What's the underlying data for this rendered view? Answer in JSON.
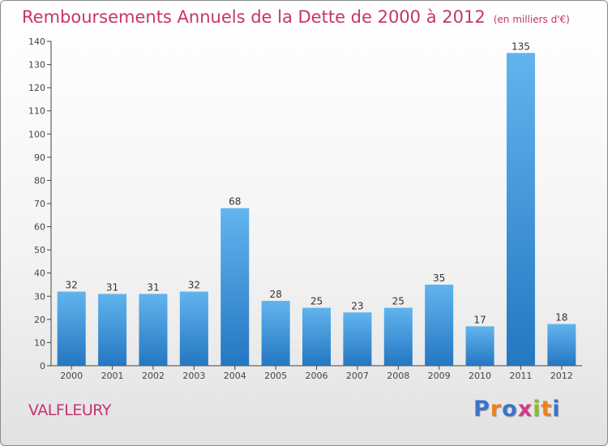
{
  "title": "Remboursements Annuels de la Dette de 2000 à 2012",
  "unit_note": "(en milliers d'€)",
  "commune": "VALFLEURY",
  "brand": {
    "name": "Proxiti",
    "colors": [
      "#3a73c9",
      "#e8821e",
      "#3a73c9",
      "#d23a8c",
      "#8cbd24",
      "#e8821e",
      "#3a73c9"
    ]
  },
  "colors": {
    "title": "#c8336f",
    "bar_light": "#62b4ee",
    "bar_dark": "#2477c1"
  },
  "chart_data": {
    "type": "bar",
    "title": "Remboursements Annuels de la Dette de 2000 à 2012",
    "xlabel": "",
    "ylabel": "",
    "ylim": [
      0,
      140
    ],
    "yticks": [
      0,
      10,
      20,
      30,
      40,
      50,
      60,
      70,
      80,
      90,
      100,
      110,
      120,
      130,
      140
    ],
    "grid": false,
    "categories": [
      "2000",
      "2001",
      "2002",
      "2003",
      "2004",
      "2005",
      "2006",
      "2007",
      "2008",
      "2009",
      "2010",
      "2011",
      "2012"
    ],
    "values": [
      32,
      31,
      31,
      32,
      68,
      28,
      25,
      23,
      25,
      35,
      17,
      135,
      18
    ]
  }
}
